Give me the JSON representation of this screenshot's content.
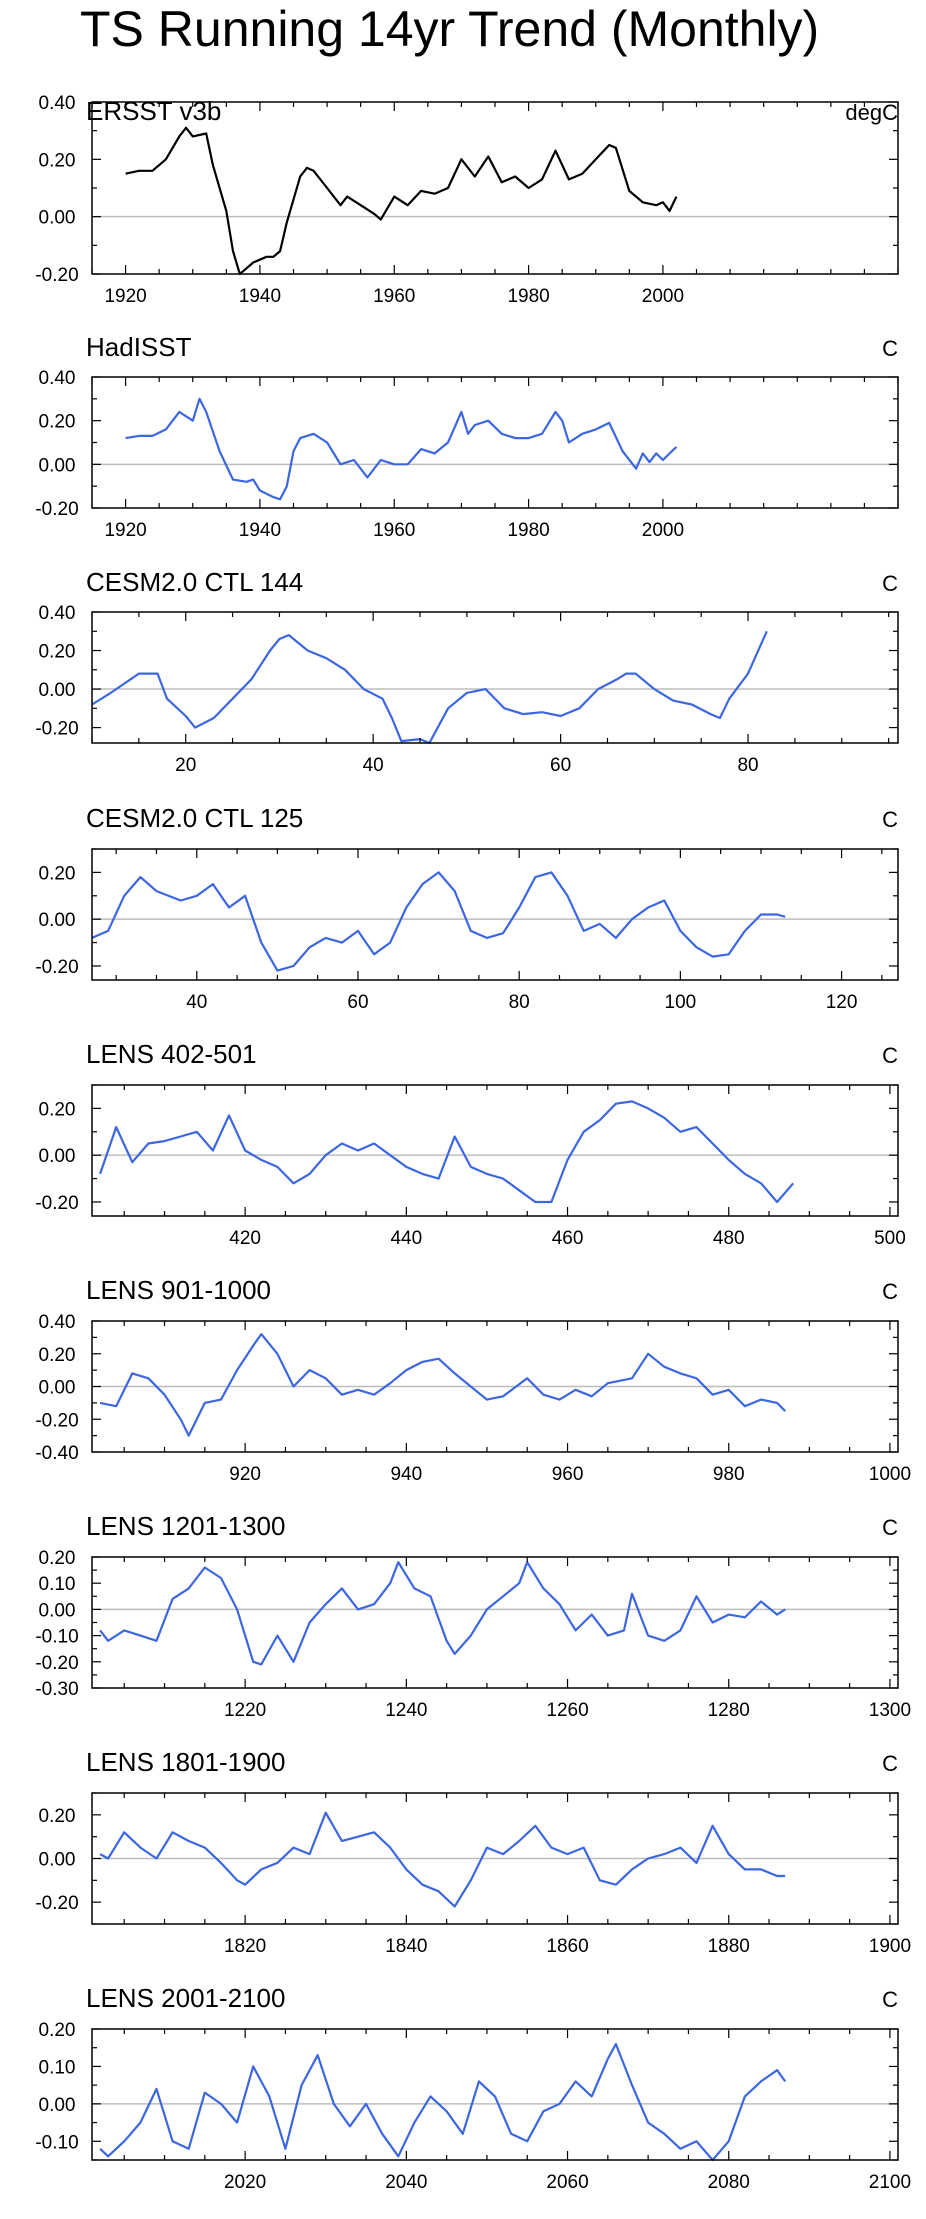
{
  "title": "TS Running 14yr Trend (Monthly)",
  "colors": {
    "observed": "#000000",
    "model": "#3c67e0",
    "zero_line": "#bdbdbd",
    "frame": "#000000"
  },
  "chart_data": [
    {
      "type": "line",
      "title": "ERSST v3b",
      "units": "degC",
      "line_color": "#000000",
      "xlim": [
        1915,
        2035
      ],
      "ylim": [
        -0.2,
        0.4
      ],
      "xticks": [
        1920,
        1940,
        1960,
        1980,
        2000
      ],
      "yticks": [
        -0.2,
        0.0,
        0.2,
        0.4
      ],
      "yticklabels": [
        "-0.20",
        "0.00",
        "0.20",
        "0.40"
      ],
      "x": [
        1920,
        1922,
        1924,
        1926,
        1928,
        1929,
        1930,
        1932,
        1933,
        1935,
        1936,
        1937,
        1938,
        1939,
        1940,
        1941,
        1942,
        1943,
        1944,
        1946,
        1947,
        1948,
        1950,
        1952,
        1953,
        1955,
        1957,
        1958,
        1960,
        1962,
        1964,
        1966,
        1968,
        1970,
        1972,
        1974,
        1976,
        1978,
        1980,
        1982,
        1984,
        1986,
        1988,
        1990,
        1992,
        1993,
        1995,
        1997,
        1999,
        2000,
        2001,
        2002
      ],
      "y": [
        0.15,
        0.16,
        0.16,
        0.2,
        0.28,
        0.31,
        0.28,
        0.29,
        0.18,
        0.02,
        -0.12,
        -0.2,
        -0.18,
        -0.16,
        -0.15,
        -0.14,
        -0.14,
        -0.12,
        -0.02,
        0.14,
        0.17,
        0.16,
        0.1,
        0.04,
        0.07,
        0.04,
        0.01,
        -0.01,
        0.07,
        0.04,
        0.09,
        0.08,
        0.1,
        0.2,
        0.14,
        0.21,
        0.12,
        0.14,
        0.1,
        0.13,
        0.23,
        0.13,
        0.15,
        0.2,
        0.25,
        0.24,
        0.09,
        0.05,
        0.04,
        0.05,
        0.02,
        0.07
      ]
    },
    {
      "type": "line",
      "title": "HadISST",
      "units": "C",
      "line_color": "#3c67e0",
      "xlim": [
        1915,
        2035
      ],
      "ylim": [
        -0.2,
        0.4
      ],
      "xticks": [
        1920,
        1940,
        1960,
        1980,
        2000
      ],
      "yticks": [
        -0.2,
        0.0,
        0.2,
        0.4
      ],
      "yticklabels": [
        "-0.20",
        "0.00",
        "0.20",
        "0.40"
      ],
      "x": [
        1920,
        1922,
        1924,
        1926,
        1928,
        1930,
        1931,
        1932,
        1934,
        1936,
        1938,
        1939,
        1940,
        1942,
        1943,
        1944,
        1945,
        1946,
        1948,
        1950,
        1952,
        1954,
        1956,
        1958,
        1960,
        1962,
        1964,
        1966,
        1968,
        1970,
        1971,
        1972,
        1974,
        1976,
        1978,
        1980,
        1982,
        1984,
        1985,
        1986,
        1988,
        1990,
        1992,
        1994,
        1996,
        1997,
        1998,
        1999,
        2000,
        2001,
        2002
      ],
      "y": [
        0.12,
        0.13,
        0.13,
        0.16,
        0.24,
        0.2,
        0.3,
        0.24,
        0.06,
        -0.07,
        -0.08,
        -0.07,
        -0.12,
        -0.15,
        -0.16,
        -0.1,
        0.06,
        0.12,
        0.14,
        0.1,
        0.0,
        0.02,
        -0.06,
        0.02,
        0.0,
        0.0,
        0.07,
        0.05,
        0.1,
        0.24,
        0.14,
        0.18,
        0.2,
        0.14,
        0.12,
        0.12,
        0.14,
        0.24,
        0.2,
        0.1,
        0.14,
        0.16,
        0.19,
        0.06,
        -0.02,
        0.05,
        0.01,
        0.05,
        0.02,
        0.05,
        0.08
      ]
    },
    {
      "type": "line",
      "title": "CESM2.0 CTL 144",
      "units": "C",
      "line_color": "#3c67e0",
      "xlim": [
        10,
        96
      ],
      "ylim": [
        -0.28,
        0.4
      ],
      "xticks": [
        20,
        40,
        60,
        80
      ],
      "yticks": [
        -0.2,
        0.0,
        0.2,
        0.4
      ],
      "yticklabels": [
        "-0.20",
        "0.00",
        "0.20",
        "0.40"
      ],
      "x": [
        10,
        12,
        15,
        17,
        18,
        20,
        21,
        23,
        25,
        27,
        29,
        30,
        31,
        33,
        35,
        37,
        39,
        41,
        42,
        43,
        45,
        46,
        48,
        50,
        52,
        54,
        56,
        58,
        60,
        62,
        64,
        66,
        67,
        68,
        70,
        72,
        74,
        76,
        77,
        78,
        80,
        82
      ],
      "y": [
        -0.08,
        -0.02,
        0.08,
        0.08,
        -0.05,
        -0.14,
        -0.2,
        -0.15,
        -0.05,
        0.05,
        0.2,
        0.26,
        0.28,
        0.2,
        0.16,
        0.1,
        0.0,
        -0.05,
        -0.15,
        -0.27,
        -0.26,
        -0.28,
        -0.1,
        -0.02,
        0.0,
        -0.1,
        -0.13,
        -0.12,
        -0.14,
        -0.1,
        0.0,
        0.05,
        0.08,
        0.08,
        0.0,
        -0.06,
        -0.08,
        -0.13,
        -0.15,
        -0.05,
        0.08,
        0.3
      ]
    },
    {
      "type": "line",
      "title": "CESM2.0 CTL 125",
      "units": "C",
      "line_color": "#3c67e0",
      "xlim": [
        27,
        127
      ],
      "ylim": [
        -0.26,
        0.3
      ],
      "xticks": [
        40,
        60,
        80,
        100,
        120
      ],
      "yticks": [
        -0.2,
        0.0,
        0.2
      ],
      "yticklabels": [
        "-0.20",
        "0.00",
        "0.20"
      ],
      "x": [
        27,
        29,
        31,
        33,
        35,
        38,
        40,
        42,
        44,
        46,
        48,
        50,
        52,
        54,
        56,
        58,
        60,
        62,
        64,
        66,
        68,
        70,
        72,
        74,
        76,
        78,
        80,
        82,
        84,
        86,
        88,
        90,
        92,
        94,
        96,
        98,
        100,
        102,
        104,
        106,
        108,
        110,
        112,
        113
      ],
      "y": [
        -0.08,
        -0.05,
        0.1,
        0.18,
        0.12,
        0.08,
        0.1,
        0.15,
        0.05,
        0.1,
        -0.1,
        -0.22,
        -0.2,
        -0.12,
        -0.08,
        -0.1,
        -0.05,
        -0.15,
        -0.1,
        0.05,
        0.15,
        0.2,
        0.12,
        -0.05,
        -0.08,
        -0.06,
        0.05,
        0.18,
        0.2,
        0.1,
        -0.05,
        -0.02,
        -0.08,
        0.0,
        0.05,
        0.08,
        -0.05,
        -0.12,
        -0.16,
        -0.15,
        -0.05,
        0.02,
        0.02,
        0.01
      ]
    },
    {
      "type": "line",
      "title": "LENS 402-501",
      "units": "C",
      "line_color": "#3c67e0",
      "xlim": [
        401,
        501
      ],
      "ylim": [
        -0.26,
        0.3
      ],
      "xticks": [
        420,
        440,
        460,
        480,
        500
      ],
      "yticks": [
        -0.2,
        0.0,
        0.2
      ],
      "yticklabels": [
        "-0.20",
        "0.00",
        "0.20"
      ],
      "x": [
        402,
        404,
        406,
        408,
        410,
        412,
        414,
        416,
        418,
        420,
        422,
        424,
        426,
        428,
        430,
        432,
        434,
        436,
        438,
        440,
        442,
        444,
        446,
        448,
        450,
        452,
        454,
        456,
        458,
        460,
        462,
        464,
        466,
        468,
        470,
        472,
        474,
        476,
        478,
        480,
        482,
        484,
        486,
        488
      ],
      "y": [
        -0.08,
        0.12,
        -0.03,
        0.05,
        0.06,
        0.08,
        0.1,
        0.02,
        0.17,
        0.02,
        -0.02,
        -0.05,
        -0.12,
        -0.08,
        0.0,
        0.05,
        0.02,
        0.05,
        0.0,
        -0.05,
        -0.08,
        -0.1,
        0.08,
        -0.05,
        -0.08,
        -0.1,
        -0.15,
        -0.2,
        -0.2,
        -0.02,
        0.1,
        0.15,
        0.22,
        0.23,
        0.2,
        0.16,
        0.1,
        0.12,
        0.05,
        -0.02,
        -0.08,
        -0.12,
        -0.2,
        -0.12
      ]
    },
    {
      "type": "line",
      "title": "LENS 901-1000",
      "units": "C",
      "line_color": "#3c67e0",
      "xlim": [
        901,
        1001
      ],
      "ylim": [
        -0.4,
        0.4
      ],
      "xticks": [
        920,
        940,
        960,
        980,
        1000
      ],
      "yticks": [
        -0.4,
        -0.2,
        0.0,
        0.2,
        0.4
      ],
      "yticklabels": [
        "-0.40",
        "-0.20",
        "0.00",
        "0.20",
        "0.40"
      ],
      "x": [
        902,
        904,
        906,
        908,
        910,
        912,
        913,
        915,
        917,
        919,
        921,
        922,
        924,
        926,
        928,
        930,
        932,
        934,
        936,
        938,
        940,
        942,
        944,
        946,
        948,
        950,
        952,
        955,
        957,
        959,
        961,
        963,
        965,
        968,
        970,
        972,
        974,
        976,
        978,
        980,
        982,
        984,
        986,
        987
      ],
      "y": [
        -0.1,
        -0.12,
        0.08,
        0.05,
        -0.05,
        -0.2,
        -0.3,
        -0.1,
        -0.08,
        0.1,
        0.25,
        0.32,
        0.2,
        0.0,
        0.1,
        0.05,
        -0.05,
        -0.02,
        -0.05,
        0.02,
        0.1,
        0.15,
        0.17,
        0.08,
        0.0,
        -0.08,
        -0.06,
        0.05,
        -0.05,
        -0.08,
        -0.02,
        -0.06,
        0.02,
        0.05,
        0.2,
        0.12,
        0.08,
        0.05,
        -0.05,
        -0.02,
        -0.12,
        -0.08,
        -0.1,
        -0.15
      ]
    },
    {
      "type": "line",
      "title": "LENS 1201-1300",
      "units": "C",
      "line_color": "#3c67e0",
      "xlim": [
        1201,
        1301
      ],
      "ylim": [
        -0.3,
        0.2
      ],
      "xticks": [
        1220,
        1240,
        1260,
        1280,
        1300
      ],
      "yticks": [
        -0.3,
        -0.2,
        -0.1,
        0.0,
        0.1,
        0.2
      ],
      "yticklabels": [
        "-0.30",
        "-0.20",
        "-0.10",
        "0.00",
        "0.10",
        "0.20"
      ],
      "x": [
        1202,
        1203,
        1205,
        1207,
        1209,
        1211,
        1213,
        1215,
        1217,
        1219,
        1221,
        1222,
        1224,
        1226,
        1228,
        1230,
        1232,
        1234,
        1236,
        1238,
        1239,
        1241,
        1243,
        1245,
        1246,
        1248,
        1250,
        1252,
        1254,
        1255,
        1257,
        1259,
        1261,
        1263,
        1265,
        1267,
        1268,
        1270,
        1272,
        1274,
        1276,
        1278,
        1280,
        1282,
        1284,
        1286,
        1287
      ],
      "y": [
        -0.08,
        -0.12,
        -0.08,
        -0.1,
        -0.12,
        0.04,
        0.08,
        0.16,
        0.12,
        0.0,
        -0.2,
        -0.21,
        -0.1,
        -0.2,
        -0.05,
        0.02,
        0.08,
        0.0,
        0.02,
        0.1,
        0.18,
        0.08,
        0.05,
        -0.12,
        -0.17,
        -0.1,
        0.0,
        0.05,
        0.1,
        0.18,
        0.08,
        0.02,
        -0.08,
        -0.02,
        -0.1,
        -0.08,
        0.06,
        -0.1,
        -0.12,
        -0.08,
        0.05,
        -0.05,
        -0.02,
        -0.03,
        0.03,
        -0.02,
        0.0
      ]
    },
    {
      "type": "line",
      "title": "LENS 1801-1900",
      "units": "C",
      "line_color": "#3c67e0",
      "xlim": [
        1801,
        1901
      ],
      "ylim": [
        -0.3,
        0.3
      ],
      "xticks": [
        1820,
        1840,
        1860,
        1880,
        1900
      ],
      "yticks": [
        -0.2,
        0.0,
        0.2
      ],
      "yticklabels": [
        "-0.20",
        "0.00",
        "0.20"
      ],
      "x": [
        1802,
        1803,
        1805,
        1807,
        1809,
        1811,
        1813,
        1815,
        1817,
        1819,
        1820,
        1822,
        1824,
        1826,
        1828,
        1830,
        1832,
        1834,
        1836,
        1838,
        1840,
        1842,
        1844,
        1846,
        1848,
        1850,
        1852,
        1854,
        1856,
        1858,
        1860,
        1862,
        1864,
        1866,
        1868,
        1870,
        1872,
        1874,
        1876,
        1878,
        1880,
        1882,
        1884,
        1886,
        1887
      ],
      "y": [
        0.02,
        0.0,
        0.12,
        0.05,
        0.0,
        0.12,
        0.08,
        0.05,
        -0.02,
        -0.1,
        -0.12,
        -0.05,
        -0.02,
        0.05,
        0.02,
        0.21,
        0.08,
        0.1,
        0.12,
        0.05,
        -0.05,
        -0.12,
        -0.15,
        -0.22,
        -0.1,
        0.05,
        0.02,
        0.08,
        0.15,
        0.05,
        0.02,
        0.05,
        -0.1,
        -0.12,
        -0.05,
        0.0,
        0.02,
        0.05,
        -0.02,
        0.15,
        0.02,
        -0.05,
        -0.05,
        -0.08,
        -0.08
      ]
    },
    {
      "type": "line",
      "title": "LENS 2001-2100",
      "units": "C",
      "line_color": "#3c67e0",
      "xlim": [
        2001,
        2101
      ],
      "ylim": [
        -0.15,
        0.2
      ],
      "xticks": [
        2020,
        2040,
        2060,
        2080,
        2100
      ],
      "yticks": [
        -0.1,
        0.0,
        0.1,
        0.2
      ],
      "yticklabels": [
        "-0.10",
        "0.00",
        "0.10",
        "0.20"
      ],
      "x": [
        2002,
        2003,
        2005,
        2007,
        2009,
        2011,
        2013,
        2015,
        2017,
        2019,
        2021,
        2023,
        2025,
        2027,
        2029,
        2031,
        2033,
        2035,
        2037,
        2039,
        2041,
        2043,
        2045,
        2047,
        2049,
        2051,
        2053,
        2055,
        2057,
        2059,
        2061,
        2063,
        2065,
        2066,
        2068,
        2070,
        2072,
        2074,
        2076,
        2078,
        2080,
        2082,
        2084,
        2086,
        2087
      ],
      "y": [
        -0.12,
        -0.14,
        -0.1,
        -0.05,
        0.04,
        -0.1,
        -0.12,
        0.03,
        0.0,
        -0.05,
        0.1,
        0.02,
        -0.12,
        0.05,
        0.13,
        0.0,
        -0.06,
        0.0,
        -0.08,
        -0.14,
        -0.05,
        0.02,
        -0.02,
        -0.08,
        0.06,
        0.02,
        -0.08,
        -0.1,
        -0.02,
        0.0,
        0.06,
        0.02,
        0.12,
        0.16,
        0.05,
        -0.05,
        -0.08,
        -0.12,
        -0.1,
        -0.15,
        -0.1,
        0.02,
        0.06,
        0.09,
        0.06
      ]
    }
  ]
}
